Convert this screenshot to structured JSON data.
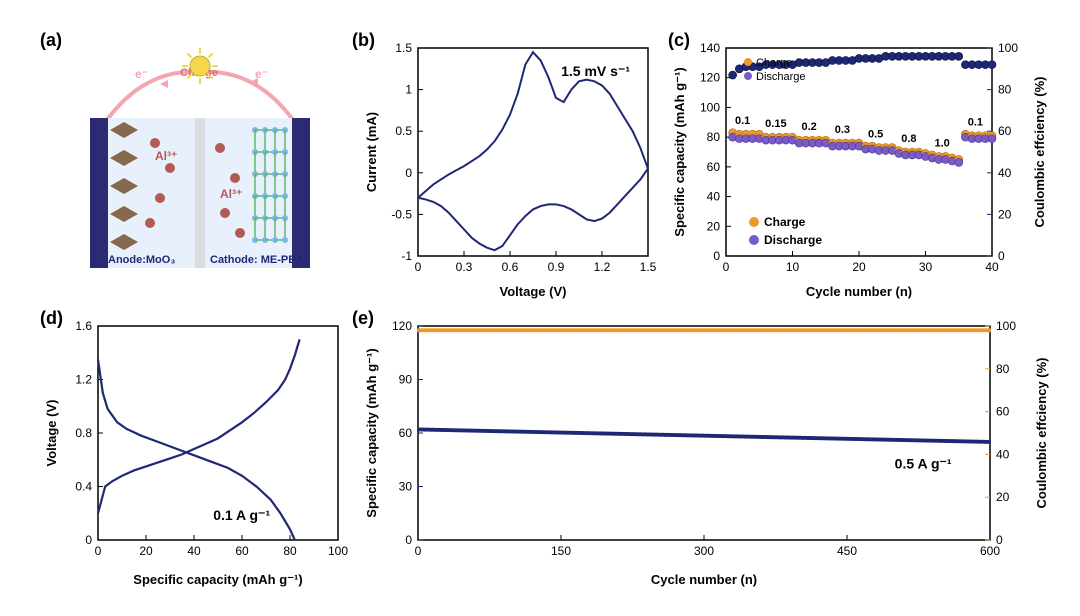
{
  "labels": {
    "a": "(a)",
    "b": "(b)",
    "c": "(c)",
    "d": "(d)",
    "e": "(e)"
  },
  "panel_a": {
    "top_text": "Charge",
    "e_label": "e⁻",
    "anode_text": "Anode:MoO₃",
    "cathode_text": "Cathode: ME-PBA",
    "ion_label": "Al³⁺",
    "wire_color": "#f4a6b0",
    "electrode_color": "#2c2a72",
    "separator_color": "#dcdde0",
    "bulb_color": "#f6d64a",
    "ion_color": "#b25a56",
    "anode_flake_color": "#7b5a3a",
    "cathode_lattice_color": "#5db86a",
    "cathode_node_color": "#7ab7f0",
    "bg_color": "#e8f0fb",
    "text_color": "#1f2875"
  },
  "panel_b": {
    "type": "line",
    "xlabel": "Voltage (V)",
    "ylabel": "Current (mA)",
    "annot": "1.5 mV s⁻¹",
    "xlim": [
      0,
      1.5
    ],
    "xtick_step": 0.3,
    "ylim": [
      -1.0,
      1.5
    ],
    "ytick_step": 0.5,
    "line_color": "#1f2875",
    "background_color": "#ffffff",
    "curve": [
      [
        0.0,
        -0.3
      ],
      [
        0.05,
        -0.32
      ],
      [
        0.1,
        -0.35
      ],
      [
        0.15,
        -0.4
      ],
      [
        0.2,
        -0.48
      ],
      [
        0.25,
        -0.58
      ],
      [
        0.3,
        -0.68
      ],
      [
        0.35,
        -0.78
      ],
      [
        0.4,
        -0.85
      ],
      [
        0.45,
        -0.9
      ],
      [
        0.5,
        -0.93
      ],
      [
        0.55,
        -0.88
      ],
      [
        0.6,
        -0.75
      ],
      [
        0.65,
        -0.62
      ],
      [
        0.7,
        -0.52
      ],
      [
        0.75,
        -0.44
      ],
      [
        0.8,
        -0.4
      ],
      [
        0.85,
        -0.38
      ],
      [
        0.9,
        -0.38
      ],
      [
        0.95,
        -0.4
      ],
      [
        1.0,
        -0.44
      ],
      [
        1.05,
        -0.5
      ],
      [
        1.1,
        -0.56
      ],
      [
        1.15,
        -0.58
      ],
      [
        1.2,
        -0.55
      ],
      [
        1.25,
        -0.48
      ],
      [
        1.3,
        -0.38
      ],
      [
        1.35,
        -0.28
      ],
      [
        1.4,
        -0.18
      ],
      [
        1.45,
        -0.08
      ],
      [
        1.5,
        0.05
      ],
      [
        1.5,
        0.05
      ],
      [
        1.45,
        0.3
      ],
      [
        1.4,
        0.5
      ],
      [
        1.35,
        0.65
      ],
      [
        1.3,
        0.8
      ],
      [
        1.25,
        0.95
      ],
      [
        1.2,
        1.05
      ],
      [
        1.15,
        1.1
      ],
      [
        1.1,
        1.12
      ],
      [
        1.05,
        1.1
      ],
      [
        1.0,
        1.0
      ],
      [
        0.95,
        0.85
      ],
      [
        0.9,
        0.9
      ],
      [
        0.85,
        1.15
      ],
      [
        0.8,
        1.35
      ],
      [
        0.75,
        1.45
      ],
      [
        0.7,
        1.3
      ],
      [
        0.65,
        0.95
      ],
      [
        0.6,
        0.7
      ],
      [
        0.55,
        0.52
      ],
      [
        0.5,
        0.38
      ],
      [
        0.45,
        0.28
      ],
      [
        0.4,
        0.2
      ],
      [
        0.35,
        0.14
      ],
      [
        0.3,
        0.08
      ],
      [
        0.25,
        0.03
      ],
      [
        0.2,
        -0.02
      ],
      [
        0.15,
        -0.08
      ],
      [
        0.1,
        -0.14
      ],
      [
        0.05,
        -0.22
      ],
      [
        0.0,
        -0.3
      ]
    ]
  },
  "panel_c": {
    "type": "scatter-dual-axis",
    "xlabel": "Cycle number (n)",
    "ylabel": "Specific capacity (mAh g⁻¹)",
    "y2label": "Coulombic effciency (%)",
    "xlim": [
      0,
      40
    ],
    "xtick_step": 10,
    "ylim": [
      0,
      140
    ],
    "ytick_step": 20,
    "y2lim": [
      0,
      100
    ],
    "y2tick_step": 20,
    "charge_color": "#ee9a28",
    "discharge_color": "#7a5cc8",
    "y2_color": "#1f2875",
    "marker_size": 4,
    "legend": [
      "Charge",
      "Discharge"
    ],
    "legend2": [
      "Charge",
      "Discharge"
    ],
    "rate_labels": [
      "0.1",
      "0.15",
      "0.2",
      "0.3",
      "0.5",
      "0.8",
      "1.0",
      "0.1"
    ],
    "rate_positions": [
      2.5,
      7.5,
      12.5,
      17.5,
      22.5,
      27.5,
      32.5,
      37.5
    ],
    "charge": [
      83,
      82,
      82,
      82,
      82,
      80,
      80,
      80,
      80,
      80,
      78,
      78,
      78,
      78,
      78,
      76,
      76,
      76,
      76,
      76,
      74,
      74,
      73,
      73,
      73,
      71,
      70,
      70,
      70,
      69,
      68,
      67,
      67,
      66,
      65,
      82,
      81,
      81,
      81,
      81
    ],
    "discharge": [
      80,
      79,
      79,
      79,
      79,
      78,
      78,
      78,
      78,
      78,
      76,
      76,
      76,
      76,
      76,
      74,
      74,
      74,
      74,
      74,
      72,
      72,
      71,
      71,
      71,
      69,
      68,
      68,
      68,
      67,
      66,
      65,
      65,
      64,
      63,
      80,
      79,
      79,
      79,
      79
    ],
    "ce": [
      87,
      90,
      91,
      91,
      91,
      92,
      92,
      92,
      92,
      92,
      93,
      93,
      93,
      93,
      93,
      94,
      94,
      94,
      94,
      95,
      95,
      95,
      95,
      96,
      96,
      96,
      96,
      96,
      96,
      96,
      96,
      96,
      96,
      96,
      96,
      92,
      92,
      92,
      92,
      92
    ]
  },
  "panel_d": {
    "type": "line",
    "xlabel": "Specific capacity (mAh g⁻¹)",
    "ylabel": "Voltage (V)",
    "annot": "0.1 A g⁻¹",
    "xlim": [
      0,
      100
    ],
    "xtick_step": 20,
    "ylim": [
      0,
      1.6
    ],
    "ytick_step": 0.4,
    "line_color": "#1f2875",
    "charge_curve": [
      [
        0,
        0.2
      ],
      [
        3,
        0.4
      ],
      [
        6,
        0.44
      ],
      [
        10,
        0.48
      ],
      [
        15,
        0.52
      ],
      [
        20,
        0.55
      ],
      [
        25,
        0.58
      ],
      [
        30,
        0.61
      ],
      [
        35,
        0.64
      ],
      [
        40,
        0.68
      ],
      [
        45,
        0.72
      ],
      [
        50,
        0.76
      ],
      [
        55,
        0.82
      ],
      [
        60,
        0.88
      ],
      [
        65,
        0.95
      ],
      [
        70,
        1.03
      ],
      [
        75,
        1.12
      ],
      [
        78,
        1.2
      ],
      [
        80,
        1.28
      ],
      [
        82,
        1.38
      ],
      [
        84,
        1.5
      ]
    ],
    "discharge_curve": [
      [
        0,
        1.35
      ],
      [
        2,
        1.1
      ],
      [
        4,
        0.98
      ],
      [
        8,
        0.88
      ],
      [
        12,
        0.83
      ],
      [
        18,
        0.78
      ],
      [
        24,
        0.74
      ],
      [
        30,
        0.7
      ],
      [
        36,
        0.66
      ],
      [
        42,
        0.62
      ],
      [
        48,
        0.58
      ],
      [
        54,
        0.54
      ],
      [
        60,
        0.48
      ],
      [
        66,
        0.4
      ],
      [
        72,
        0.3
      ],
      [
        76,
        0.2
      ],
      [
        80,
        0.08
      ],
      [
        82,
        0.0
      ]
    ]
  },
  "panel_e": {
    "type": "scatter-dual-axis",
    "xlabel": "Cycle number (n)",
    "ylabel": "Specific capacity (mAh g⁻¹)",
    "y2label": "Coulombic effciency (%)",
    "annot": "0.5 A g⁻¹",
    "xlim": [
      0,
      600
    ],
    "xtick_step": 150,
    "ylim": [
      0,
      120
    ],
    "ytick_step": 30,
    "y2lim": [
      0,
      100
    ],
    "y2tick_step": 20,
    "cap_color": "#1f2875",
    "ce_color": "#ee9a28",
    "marker_size": 2,
    "cap_start": 62,
    "cap_end": 55,
    "cap_count": 600,
    "ce_value": 98
  }
}
